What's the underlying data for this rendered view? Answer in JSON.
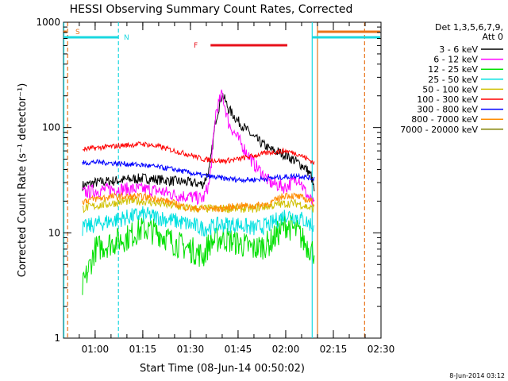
{
  "chart_data": {
    "type": "line",
    "title": "HESSI Observing Summary Count Rates, Corrected",
    "xlabel": "Start Time (08-Jun-14 00:50:02)",
    "ylabel": "Corrected Count Rate (s⁻¹ detector⁻¹)",
    "yscale": "log",
    "ylim": [
      1,
      1000
    ],
    "xlim": [
      "00:50:02",
      "02:30:00"
    ],
    "x_ticks": [
      "01:00",
      "01:15",
      "01:30",
      "01:45",
      "02:00",
      "02:15",
      "02:30"
    ],
    "y_ticks": [
      "1",
      "10",
      "100",
      "1000"
    ],
    "legend_header": [
      "Det 1,3,5,6,7,9,",
      "Att 0"
    ],
    "legend_position": "right",
    "footer": "8-Jun-2014 03:12",
    "markers": [
      {
        "label": "S",
        "color": "#e8741a"
      },
      {
        "label": "N",
        "color": "#1ad8e0"
      },
      {
        "label": "F",
        "color": "#e8101a"
      }
    ],
    "series": [
      {
        "name": "3 - 6 keV",
        "color": "#000000",
        "x": [
          "00:56",
          "01:00",
          "01:05",
          "01:10",
          "01:15",
          "01:20",
          "01:25",
          "01:30",
          "01:34",
          "01:36",
          "01:38",
          "01:40",
          "01:42",
          "01:45",
          "01:50",
          "01:55",
          "02:00",
          "02:04",
          "02:06",
          "02:08",
          "02:09"
        ],
        "y": [
          28,
          30,
          31,
          32,
          33,
          32,
          31,
          30,
          29,
          40,
          120,
          210,
          150,
          115,
          80,
          62,
          55,
          46,
          42,
          35,
          25
        ]
      },
      {
        "name": "6 - 12 keV",
        "color": "#ff00ff",
        "x": [
          "00:56",
          "01:00",
          "01:05",
          "01:10",
          "01:15",
          "01:20",
          "01:25",
          "01:30",
          "01:34",
          "01:36",
          "01:38",
          "01:40",
          "01:42",
          "01:45",
          "01:50",
          "01:55",
          "02:00",
          "02:04",
          "02:06",
          "02:08",
          "02:09"
        ],
        "y": [
          24,
          25,
          26,
          26,
          26,
          25,
          23,
          22,
          21,
          30,
          140,
          210,
          110,
          78,
          45,
          30,
          27,
          34,
          25,
          20,
          18
        ]
      },
      {
        "name": "12 - 25 keV",
        "color": "#00e000",
        "x": [
          "00:56",
          "01:00",
          "01:05",
          "01:10",
          "01:15",
          "01:20",
          "01:25",
          "01:30",
          "01:34",
          "01:36",
          "01:40",
          "01:45",
          "01:50",
          "01:55",
          "02:00",
          "02:04",
          "02:06",
          "02:08",
          "02:09"
        ],
        "y": [
          3,
          7,
          8,
          9,
          11,
          10,
          8,
          7,
          6,
          8,
          9,
          8,
          7,
          8,
          12,
          10,
          8,
          7,
          6.5
        ]
      },
      {
        "name": "25 - 50 keV",
        "color": "#00e0e0",
        "x": [
          "00:56",
          "01:00",
          "01:05",
          "01:10",
          "01:15",
          "01:20",
          "01:25",
          "01:30",
          "01:34",
          "01:40",
          "01:45",
          "01:50",
          "01:55",
          "02:00",
          "02:04",
          "02:06",
          "02:08",
          "02:09"
        ],
        "y": [
          11,
          12,
          13,
          14,
          15,
          14,
          13,
          12,
          11,
          12,
          12,
          11,
          12,
          15,
          14,
          13,
          12,
          11
        ]
      },
      {
        "name": "50 - 100 keV",
        "color": "#d0c000",
        "x": [
          "00:56",
          "01:00",
          "01:05",
          "01:10",
          "01:15",
          "01:20",
          "01:25",
          "01:30",
          "01:34",
          "01:40",
          "01:45",
          "01:50",
          "01:55",
          "02:00",
          "02:04",
          "02:06",
          "02:08",
          "02:09"
        ],
        "y": [
          17,
          18,
          19,
          20,
          20,
          19,
          18,
          17,
          17,
          17,
          17,
          17,
          18,
          19,
          19,
          18,
          17,
          17
        ]
      },
      {
        "name": "100 - 300 keV",
        "color": "#ff0000",
        "x": [
          "00:56",
          "01:00",
          "01:05",
          "01:10",
          "01:15",
          "01:20",
          "01:25",
          "01:30",
          "01:34",
          "01:40",
          "01:45",
          "01:50",
          "01:55",
          "02:00",
          "02:04",
          "02:06",
          "02:08",
          "02:09"
        ],
        "y": [
          62,
          64,
          66,
          68,
          70,
          66,
          60,
          55,
          50,
          48,
          50,
          54,
          58,
          60,
          56,
          52,
          48,
          46
        ]
      },
      {
        "name": "300 - 800 keV",
        "color": "#0000ff",
        "x": [
          "00:56",
          "01:00",
          "01:05",
          "01:10",
          "01:15",
          "01:20",
          "01:25",
          "01:30",
          "01:34",
          "01:40",
          "01:45",
          "01:50",
          "01:55",
          "02:00",
          "02:04",
          "02:06",
          "02:08",
          "02:09"
        ],
        "y": [
          46,
          47,
          46,
          45,
          44,
          42,
          40,
          37,
          35,
          33,
          32,
          32,
          33,
          34,
          35,
          34,
          33,
          33
        ]
      },
      {
        "name": "800 - 7000 keV",
        "color": "#ff8c00",
        "x": [
          "00:56",
          "01:00",
          "01:05",
          "01:10",
          "01:15",
          "01:20",
          "01:25",
          "01:30",
          "01:34",
          "01:40",
          "01:45",
          "01:50",
          "01:55",
          "02:00",
          "02:04",
          "02:06",
          "02:08",
          "02:09"
        ],
        "y": [
          20,
          21,
          22,
          22,
          22,
          21,
          19,
          17,
          17,
          17,
          18,
          18,
          19,
          23,
          22,
          21,
          20,
          19
        ]
      },
      {
        "name": "7000 - 20000 keV",
        "color": "#808000",
        "x": [],
        "y": []
      }
    ]
  }
}
